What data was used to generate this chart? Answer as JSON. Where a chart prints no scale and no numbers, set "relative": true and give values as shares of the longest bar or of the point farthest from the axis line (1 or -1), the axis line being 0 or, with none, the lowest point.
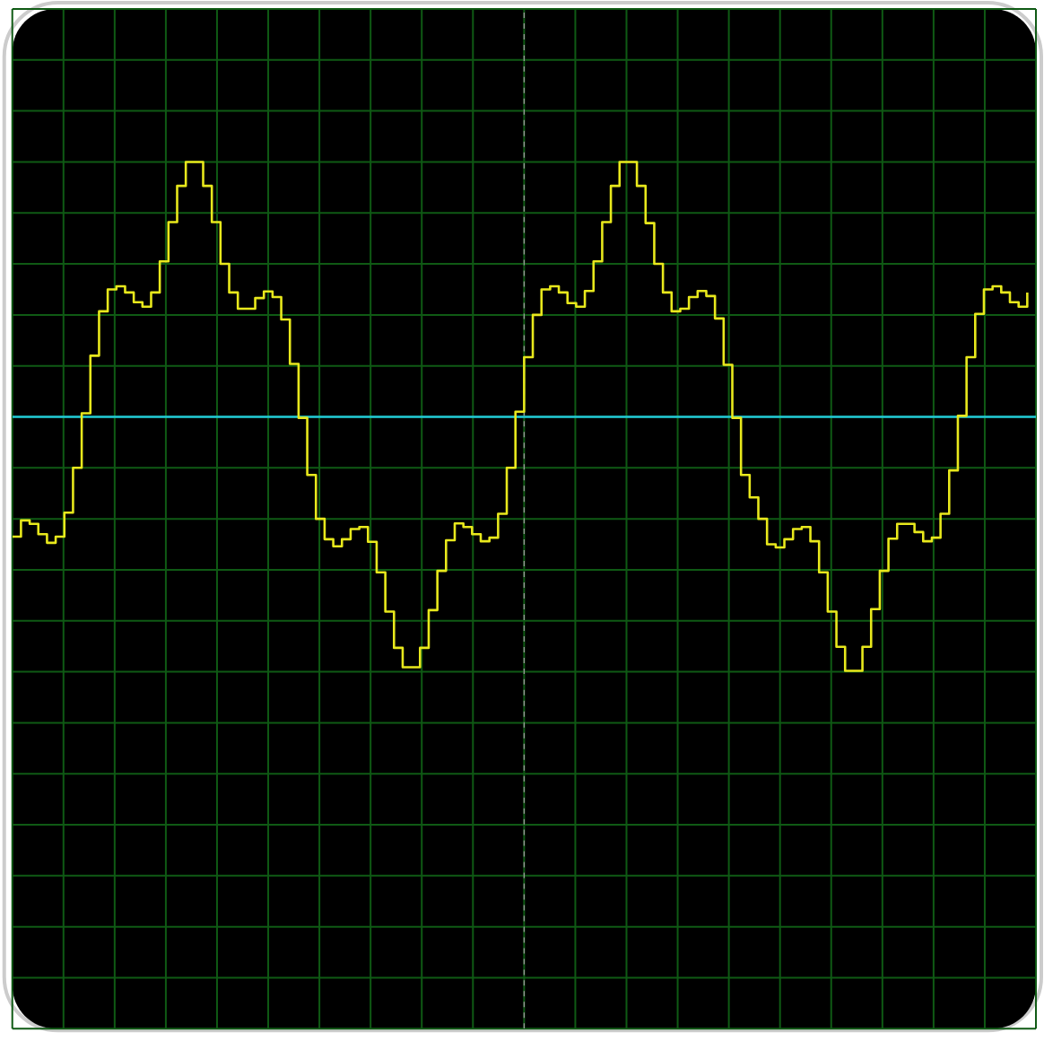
{
  "chart_data": {
    "type": "step",
    "relative": true,
    "grid": true,
    "tick_labels": false,
    "categories": [
      null,
      null,
      null,
      null,
      null,
      null,
      null,
      null,
      null,
      null,
      null,
      null,
      null,
      null,
      null,
      null,
      null,
      null,
      null,
      null,
      null,
      null,
      null,
      null,
      null,
      null,
      null,
      null,
      null,
      null,
      null,
      null,
      null,
      null,
      null,
      null,
      null,
      null,
      null,
      null,
      null,
      null,
      null,
      null,
      null,
      null,
      null,
      null,
      null,
      null,
      null,
      null,
      null,
      null,
      null,
      null,
      null,
      null,
      null,
      null,
      null,
      null,
      null,
      null,
      null,
      null,
      null,
      null,
      null,
      null,
      null,
      null,
      null,
      null,
      null,
      null,
      null,
      null,
      null,
      null,
      null,
      null,
      null,
      null,
      null,
      null,
      null,
      null,
      null,
      null,
      null,
      null,
      null,
      null,
      null,
      null,
      null,
      null,
      null,
      null,
      null,
      null,
      null,
      null,
      null,
      null,
      null,
      null,
      null,
      null,
      null,
      null,
      null,
      null,
      null,
      null,
      null,
      null
    ],
    "ref_lines": [
      {
        "axis": "y",
        "value": 0,
        "color": "#22c8d8"
      }
    ],
    "series": [
      {
        "color": "#e8e81c",
        "values": [
          -0.47,
          -0.406,
          -0.42,
          -0.46,
          -0.494,
          -0.47,
          -0.376,
          -0.2,
          0.014,
          0.24,
          0.414,
          0.5,
          0.512,
          0.488,
          0.45,
          0.432,
          0.488,
          0.61,
          0.764,
          0.906,
          1,
          1,
          0.906,
          0.764,
          0.6,
          0.488,
          0.424,
          0.424,
          0.466,
          0.492,
          0.47,
          0.382,
          0.208,
          -0.004,
          -0.228,
          -0.4,
          -0.48,
          -0.508,
          -0.48,
          -0.44,
          -0.432,
          -0.49,
          -0.61,
          -0.764,
          -0.906,
          -0.982,
          -0.982,
          -0.906,
          -0.758,
          -0.604,
          -0.484,
          -0.418,
          -0.432,
          -0.46,
          -0.488,
          -0.474,
          -0.38,
          -0.2,
          0.02,
          0.234,
          0.4,
          0.5,
          0.512,
          0.488,
          0.446,
          0.432,
          0.494,
          0.61,
          0.764,
          0.906,
          1,
          1,
          0.906,
          0.76,
          0.6,
          0.488,
          0.414,
          0.424,
          0.47,
          0.494,
          0.474,
          0.386,
          0.204,
          -0.004,
          -0.228,
          -0.316,
          -0.4,
          -0.5,
          -0.512,
          -0.48,
          -0.44,
          -0.432,
          -0.488,
          -0.61,
          -0.764,
          -0.902,
          -0.996,
          -0.996,
          -0.902,
          -0.754,
          -0.604,
          -0.478,
          -0.42,
          -0.42,
          -0.452,
          -0.488,
          -0.474,
          -0.38,
          -0.21,
          0.004,
          0.234,
          0.404,
          0.5,
          0.512,
          0.488,
          0.45,
          0.432,
          0.488
        ]
      }
    ]
  }
}
